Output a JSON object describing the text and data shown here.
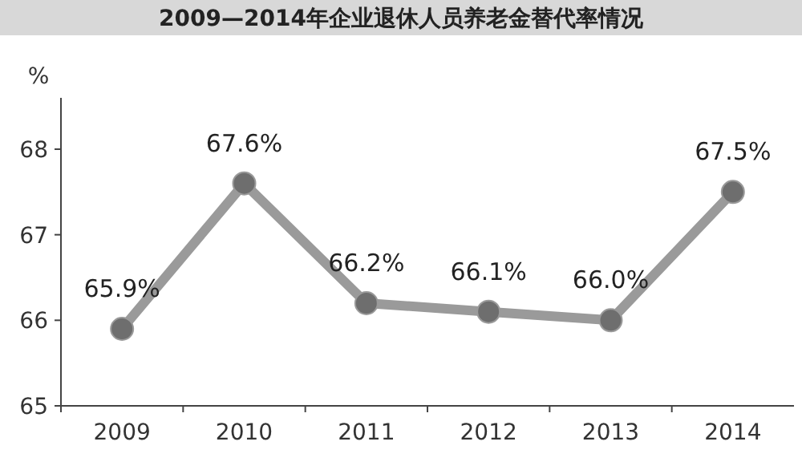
{
  "chart_data": {
    "type": "line",
    "title": "2009—2014年企业退休人员养老金替代率情况",
    "ylabel": "%",
    "categories": [
      "2009",
      "2010",
      "2011",
      "2012",
      "2013",
      "2014"
    ],
    "values": [
      65.9,
      67.6,
      66.2,
      66.1,
      66.0,
      67.5
    ],
    "value_labels": [
      "65.9%",
      "67.6%",
      "66.2%",
      "66.1%",
      "66.0%",
      "67.5%"
    ],
    "color": "#9a9a9a",
    "marker": "circle",
    "ylim": [
      65,
      68.6
    ],
    "yticks": [
      65,
      66,
      67,
      68
    ],
    "grid": false
  }
}
